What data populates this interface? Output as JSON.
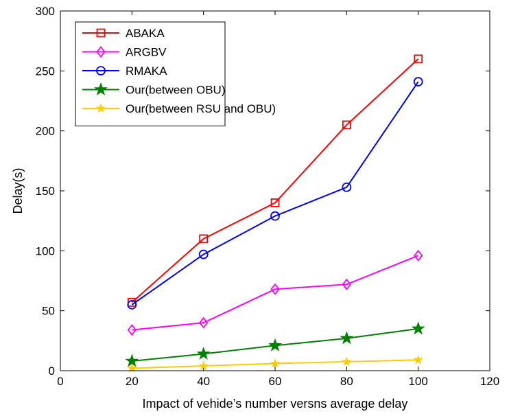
{
  "chart_data": {
    "type": "line",
    "title": "",
    "xlabel": "Impact of vehide’s number versns average delay",
    "ylabel": "Delay(s)",
    "xlim": [
      0,
      120
    ],
    "ylim": [
      0,
      300
    ],
    "xticks": [
      0,
      20,
      40,
      60,
      80,
      100,
      120
    ],
    "yticks": [
      0,
      50,
      100,
      150,
      200,
      250,
      300
    ],
    "xtick_labels": [
      "0",
      "20",
      "40",
      "60",
      "80",
      "100",
      "120"
    ],
    "ytick_labels": [
      "0",
      "50",
      "100",
      "150",
      "200",
      "250",
      "300"
    ],
    "grid": false,
    "legend_position": "top-left",
    "x": [
      20,
      40,
      60,
      80,
      100
    ],
    "series": [
      {
        "name": "ABAKA",
        "values": [
          57,
          110,
          140,
          205,
          260
        ],
        "color": "#ff0000",
        "marker": "square"
      },
      {
        "name": "ARGBV",
        "values": [
          34,
          40,
          68,
          72,
          96
        ],
        "color": "#ff00ff",
        "marker": "diamond"
      },
      {
        "name": "RMAKA",
        "values": [
          55,
          97,
          129,
          153,
          241
        ],
        "color": "#0000ff",
        "marker": "circle"
      },
      {
        "name": "Our(between OBU)",
        "values": [
          8,
          14,
          21,
          27,
          35
        ],
        "color": "#008000",
        "marker": "star"
      },
      {
        "name": "Our(between RSU and OBU)",
        "values": [
          2,
          4,
          6,
          7.5,
          9
        ],
        "color": "#ffcc00",
        "marker": "star-small"
      }
    ]
  }
}
